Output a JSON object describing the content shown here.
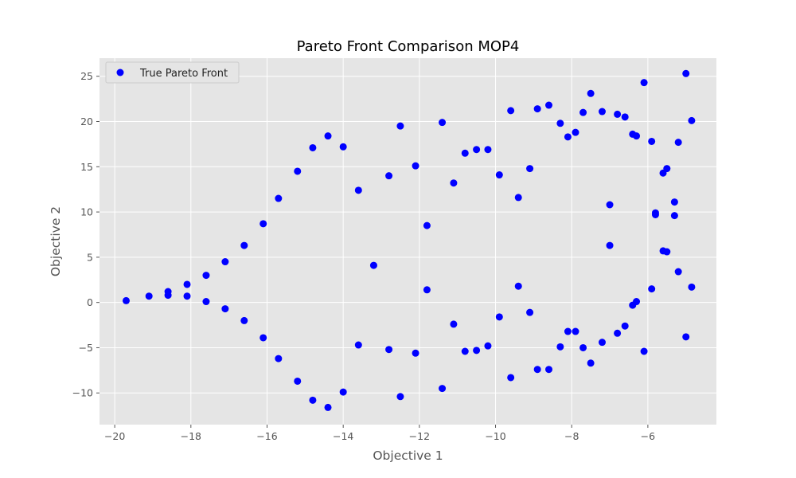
{
  "chart_data": {
    "type": "scatter",
    "title": "Pareto Front Comparison MOP4",
    "xlabel": "Objective 1",
    "ylabel": "Objective 2",
    "xlim": [
      -20.4,
      -4.2
    ],
    "ylim": [
      -13.5,
      27.0
    ],
    "xticks": [
      -20,
      -18,
      -16,
      -14,
      -12,
      -10,
      -8,
      -6
    ],
    "yticks": [
      -10,
      -5,
      0,
      5,
      10,
      15,
      20,
      25
    ],
    "grid": true,
    "legend_position": "upper-left",
    "colors": {
      "background": "#e5e5e5",
      "grid": "#ffffff",
      "marker": "#0000ff"
    },
    "series": [
      {
        "name": "True Pareto Front",
        "points": [
          [
            -19.7,
            0.2
          ],
          [
            -19.1,
            0.7
          ],
          [
            -18.6,
            0.8
          ],
          [
            -18.6,
            1.2
          ],
          [
            -18.1,
            2.0
          ],
          [
            -18.1,
            0.7
          ],
          [
            -17.6,
            3.0
          ],
          [
            -17.6,
            0.1
          ],
          [
            -17.1,
            4.5
          ],
          [
            -17.1,
            -0.7
          ],
          [
            -16.6,
            6.3
          ],
          [
            -16.6,
            -2.0
          ],
          [
            -16.1,
            8.7
          ],
          [
            -16.1,
            -3.9
          ],
          [
            -15.7,
            11.5
          ],
          [
            -15.7,
            -6.2
          ],
          [
            -15.2,
            14.5
          ],
          [
            -15.2,
            -8.7
          ],
          [
            -14.8,
            17.1
          ],
          [
            -14.8,
            -10.8
          ],
          [
            -14.4,
            18.4
          ],
          [
            -14.4,
            -11.6
          ],
          [
            -14.0,
            17.2
          ],
          [
            -14.0,
            -9.9
          ],
          [
            -13.6,
            12.4
          ],
          [
            -13.6,
            -4.7
          ],
          [
            -13.2,
            4.1
          ],
          [
            -12.8,
            14.0
          ],
          [
            -12.8,
            -5.2
          ],
          [
            -12.5,
            19.5
          ],
          [
            -12.5,
            -10.4
          ],
          [
            -12.1,
            15.1
          ],
          [
            -12.1,
            -5.6
          ],
          [
            -11.8,
            8.5
          ],
          [
            -11.8,
            1.4
          ],
          [
            -11.4,
            19.9
          ],
          [
            -11.4,
            -9.5
          ],
          [
            -11.1,
            13.2
          ],
          [
            -11.1,
            -2.4
          ],
          [
            -10.8,
            16.5
          ],
          [
            -10.8,
            -5.4
          ],
          [
            -10.5,
            16.9
          ],
          [
            -10.5,
            -5.3
          ],
          [
            -10.2,
            16.9
          ],
          [
            -10.2,
            -4.8
          ],
          [
            -9.9,
            14.1
          ],
          [
            -9.9,
            -1.6
          ],
          [
            -9.6,
            21.2
          ],
          [
            -9.6,
            -8.3
          ],
          [
            -9.4,
            11.6
          ],
          [
            -9.4,
            1.8
          ],
          [
            -9.1,
            14.8
          ],
          [
            -9.1,
            -1.1
          ],
          [
            -8.9,
            21.4
          ],
          [
            -8.9,
            -7.4
          ],
          [
            -8.6,
            21.8
          ],
          [
            -8.6,
            -7.4
          ],
          [
            -8.3,
            19.8
          ],
          [
            -8.3,
            -4.9
          ],
          [
            -8.1,
            18.3
          ],
          [
            -8.1,
            -3.2
          ],
          [
            -7.9,
            18.8
          ],
          [
            -7.9,
            -3.2
          ],
          [
            -7.7,
            21.0
          ],
          [
            -7.7,
            -5.0
          ],
          [
            -7.5,
            23.1
          ],
          [
            -7.5,
            -6.7
          ],
          [
            -7.2,
            21.1
          ],
          [
            -7.2,
            -4.4
          ],
          [
            -7.0,
            10.8
          ],
          [
            -7.0,
            6.3
          ],
          [
            -6.8,
            20.8
          ],
          [
            -6.8,
            -3.4
          ],
          [
            -6.6,
            20.5
          ],
          [
            -6.6,
            -2.6
          ],
          [
            -6.4,
            18.6
          ],
          [
            -6.4,
            -0.3
          ],
          [
            -6.3,
            18.4
          ],
          [
            -6.3,
            0.1
          ],
          [
            -6.1,
            24.3
          ],
          [
            -6.1,
            -5.4
          ],
          [
            -5.9,
            17.8
          ],
          [
            -5.9,
            1.5
          ],
          [
            -5.8,
            9.9
          ],
          [
            -5.8,
            9.7
          ],
          [
            -5.6,
            14.3
          ],
          [
            -5.6,
            5.7
          ],
          [
            -5.5,
            14.8
          ],
          [
            -5.5,
            5.6
          ],
          [
            -5.3,
            11.1
          ],
          [
            -5.3,
            9.6
          ],
          [
            -5.2,
            17.7
          ],
          [
            -5.2,
            3.4
          ],
          [
            -5.0,
            25.3
          ],
          [
            -5.0,
            -3.8
          ],
          [
            -4.85,
            20.1
          ],
          [
            -4.85,
            1.7
          ]
        ]
      }
    ]
  }
}
